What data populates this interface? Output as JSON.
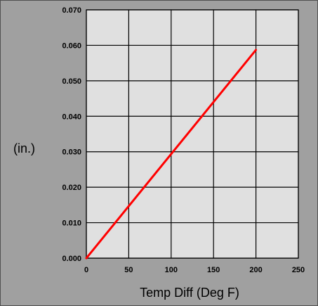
{
  "chart_data": {
    "type": "line",
    "title": "",
    "xlabel": "Temp Diff (Deg F)",
    "ylabel": "(in.)",
    "xlim": [
      0,
      250
    ],
    "ylim": [
      0,
      0.07
    ],
    "x_ticks": [
      "0",
      "50",
      "100",
      "150",
      "200",
      "250"
    ],
    "y_ticks": [
      "0.000",
      "0.010",
      "0.020",
      "0.030",
      "0.040",
      "0.050",
      "0.060",
      "0.070"
    ],
    "grid": true,
    "series": [
      {
        "color": "#ff0000",
        "x": [
          0,
          200
        ],
        "y": [
          0,
          0.0587
        ]
      }
    ]
  },
  "colors": {
    "frame_background": "#a0a0a0",
    "plot_background": "#e0e0e0",
    "grid": "#000000",
    "line": "#ff0000"
  }
}
